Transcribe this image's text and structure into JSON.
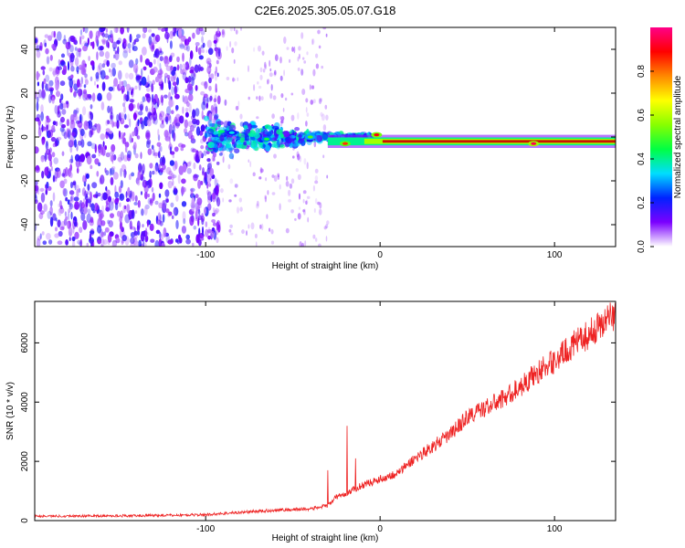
{
  "title": "C2E6.2025.305.05.07.G18",
  "colors": {
    "snr_line": "#ee2222",
    "track": "#cc1100",
    "speckle": "#6a00e8"
  },
  "chart_data": [
    {
      "type": "heatmap",
      "xlabel": "Height of straight line (km)",
      "ylabel": "Frequency (Hz)",
      "xlim": [
        -198,
        135
      ],
      "ylim": [
        -50,
        50
      ],
      "xticks": [
        -100,
        0,
        100
      ],
      "yticks": [
        -40,
        -20,
        0,
        20,
        40
      ],
      "colorbar": {
        "label": "Normalized spectral amplitude",
        "range": [
          0,
          1
        ],
        "ticks": [
          "0.0",
          "0.2",
          "0.4",
          "0.6",
          "0.8"
        ],
        "colormap": [
          "#ffffff",
          "#7b00ff",
          "#0022ff",
          "#00ddff",
          "#00ff44",
          "#88ff00",
          "#ffff00",
          "#ff8800",
          "#ff0000",
          "#ff0088"
        ]
      },
      "features": {
        "noise_region_x": [
          -198,
          -100
        ],
        "transition_region_x": [
          -100,
          -30
        ],
        "tone_region_x": [
          -30,
          135
        ],
        "tone_frequency_hz": -2,
        "bright_points": [
          {
            "x": -85,
            "y": 2,
            "amplitude": 0.35
          },
          {
            "x": -65,
            "y": -1,
            "amplitude": 0.45
          },
          {
            "x": -40,
            "y": 0,
            "amplitude": 0.5
          },
          {
            "x": -20,
            "y": -3,
            "amplitude": 0.85
          },
          {
            "x": -2,
            "y": 1,
            "amplitude": 0.9
          },
          {
            "x": 88,
            "y": -3,
            "amplitude": 0.95
          }
        ]
      }
    },
    {
      "type": "line",
      "xlabel": "Height of straight line (km)",
      "ylabel": "SNR (10 * v/v)",
      "xlim": [
        -198,
        135
      ],
      "ylim": [
        0,
        7400
      ],
      "xticks": [
        -100,
        0,
        100
      ],
      "yticks": [
        0,
        2000,
        4000,
        6000
      ],
      "series": [
        {
          "x": [
            -198,
            -150,
            -120,
            -100,
            -80,
            -60,
            -40,
            -30,
            -25,
            -20,
            -10,
            0,
            10,
            20,
            30,
            40,
            50,
            60,
            70,
            80,
            90,
            100,
            110,
            120,
            130,
            135
          ],
          "y": [
            150,
            160,
            180,
            200,
            280,
            350,
            400,
            500,
            800,
            900,
            1200,
            1400,
            1600,
            2100,
            2500,
            2900,
            3500,
            3800,
            4100,
            4500,
            5000,
            5400,
            5900,
            6300,
            6800,
            7000
          ]
        }
      ],
      "spikes": [
        {
          "x": -30,
          "y": 1700
        },
        {
          "x": -19,
          "y": 3200
        },
        {
          "x": -14,
          "y": 2100
        }
      ]
    }
  ]
}
